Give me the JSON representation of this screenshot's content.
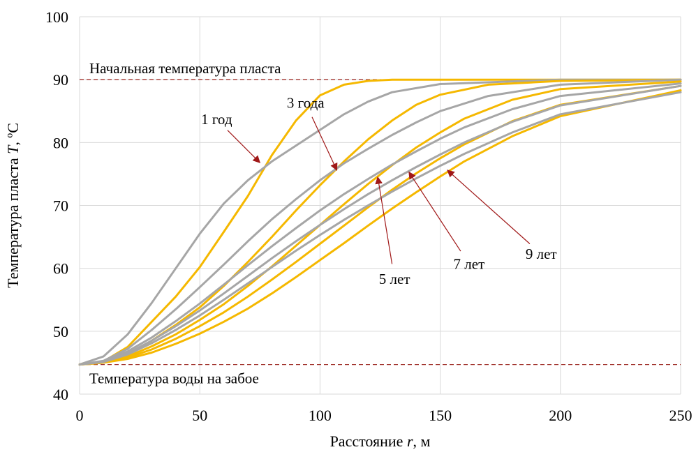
{
  "chart_data": {
    "type": "line",
    "title": "",
    "xlabel_prefix": "Расстояние ",
    "xlabel_var": "r",
    "xlabel_suffix": ", м",
    "ylabel_prefix": "Температура пласта ",
    "ylabel_var": "T",
    "ylabel_suffix": ", ºС",
    "xlim": [
      0,
      250
    ],
    "ylim": [
      40,
      100
    ],
    "x_ticks": [
      0,
      50,
      100,
      150,
      200,
      250
    ],
    "y_ticks": [
      40,
      50,
      60,
      70,
      80,
      90,
      100
    ],
    "x_tick_labels": [
      "0",
      "50",
      "100",
      "150",
      "200",
      "250"
    ],
    "y_tick_labels": [
      "40",
      "50",
      "60",
      "70",
      "80",
      "90",
      "100"
    ],
    "grid": true,
    "colors": {
      "gold": "#f5b800",
      "gray": "#a6a6a6",
      "reference": "#a0302a",
      "arrow": "#a01818"
    },
    "reference_lines": [
      {
        "y": 90,
        "label": "Начальная температура пласта"
      },
      {
        "y": 44.7,
        "label": "Температура воды на забое"
      }
    ],
    "series": [
      {
        "color": "gold",
        "x": [
          0,
          10,
          20,
          30,
          40,
          50,
          60,
          70,
          80,
          90,
          100,
          110,
          120,
          130,
          150,
          200,
          250
        ],
        "y": [
          44.7,
          45.2,
          47.5,
          51.5,
          55.5,
          60.2,
          65.8,
          71.5,
          78,
          83.5,
          87.5,
          89.2,
          89.8,
          90,
          90,
          90,
          90
        ]
      },
      {
        "color": "gray",
        "x": [
          0,
          10,
          20,
          30,
          40,
          50,
          60,
          70,
          80,
          90,
          100,
          110,
          120,
          130,
          150,
          200,
          250
        ],
        "y": [
          44.7,
          46,
          49.5,
          54.5,
          60,
          65.5,
          70.3,
          74,
          77,
          79.5,
          82,
          84.5,
          86.5,
          88,
          89.3,
          90,
          90
        ]
      },
      {
        "color": "gold",
        "x": [
          0,
          10,
          20,
          30,
          40,
          50,
          60,
          70,
          80,
          90,
          100,
          110,
          120,
          130,
          140,
          150,
          170,
          200,
          250
        ],
        "y": [
          44.7,
          45.1,
          46.3,
          48.5,
          51,
          53.8,
          57.2,
          61,
          65,
          69.2,
          73.2,
          77,
          80.5,
          83.5,
          86,
          87.6,
          89.2,
          89.8,
          90
        ]
      },
      {
        "color": "gray",
        "x": [
          0,
          10,
          20,
          30,
          40,
          50,
          60,
          70,
          80,
          90,
          100,
          110,
          120,
          130,
          140,
          150,
          170,
          200,
          250
        ],
        "y": [
          44.7,
          45.3,
          47.2,
          50.2,
          53.5,
          57,
          60.6,
          64.3,
          67.8,
          71,
          74,
          76.7,
          79,
          81.2,
          83.2,
          85,
          87.4,
          89.2,
          90
        ]
      },
      {
        "color": "gold",
        "x": [
          0,
          10,
          20,
          30,
          40,
          50,
          60,
          70,
          80,
          90,
          100,
          110,
          120,
          130,
          140,
          150,
          160,
          180,
          200,
          250
        ],
        "y": [
          44.7,
          45,
          46,
          47.6,
          49.5,
          51.8,
          54.3,
          57.2,
          60.3,
          63.6,
          66.9,
          70.2,
          73.4,
          76.4,
          79.2,
          81.6,
          83.8,
          86.8,
          88.5,
          89.7
        ]
      },
      {
        "color": "gray",
        "x": [
          0,
          10,
          20,
          30,
          40,
          50,
          60,
          70,
          80,
          90,
          100,
          110,
          120,
          130,
          140,
          150,
          160,
          180,
          200,
          250
        ],
        "y": [
          44.7,
          45.2,
          46.8,
          49,
          51.6,
          54.4,
          57.4,
          60.5,
          63.5,
          66.4,
          69.2,
          71.8,
          74.2,
          76.5,
          78.6,
          80.6,
          82.4,
          85.3,
          87.4,
          89.4
        ]
      },
      {
        "color": "gold",
        "x": [
          0,
          10,
          20,
          30,
          40,
          50,
          60,
          70,
          80,
          90,
          100,
          110,
          120,
          130,
          140,
          150,
          160,
          180,
          200,
          250
        ],
        "y": [
          44.7,
          45,
          45.8,
          47.1,
          48.8,
          50.8,
          53,
          55.5,
          58.2,
          61,
          63.9,
          66.8,
          69.7,
          72.5,
          75.1,
          77.5,
          79.7,
          83.4,
          86,
          89
        ]
      },
      {
        "color": "gray",
        "x": [
          0,
          10,
          20,
          30,
          40,
          50,
          60,
          70,
          80,
          90,
          100,
          110,
          120,
          130,
          140,
          150,
          160,
          180,
          200,
          250
        ],
        "y": [
          44.7,
          45.1,
          46.5,
          48.5,
          50.8,
          53.3,
          56,
          58.8,
          61.6,
          64.3,
          66.9,
          69.4,
          71.8,
          74,
          76.1,
          78.1,
          80,
          83.3,
          85.9,
          89
        ]
      },
      {
        "color": "gold",
        "x": [
          0,
          10,
          20,
          30,
          40,
          50,
          60,
          70,
          80,
          90,
          100,
          110,
          120,
          130,
          140,
          150,
          160,
          180,
          200,
          250
        ],
        "y": [
          44.7,
          45,
          45.6,
          46.6,
          48,
          49.6,
          51.5,
          53.6,
          56,
          58.6,
          61.3,
          64,
          66.8,
          69.5,
          72.1,
          74.6,
          77,
          81,
          84.2,
          88.3
        ]
      },
      {
        "color": "gray",
        "x": [
          0,
          10,
          20,
          30,
          40,
          50,
          60,
          70,
          80,
          90,
          100,
          110,
          120,
          130,
          140,
          150,
          160,
          180,
          200,
          250
        ],
        "y": [
          44.7,
          45.1,
          46.3,
          48.1,
          50.2,
          52.5,
          55,
          57.6,
          60.2,
          62.8,
          65.3,
          67.7,
          70,
          72.2,
          74.3,
          76.3,
          78.2,
          81.6,
          84.5,
          88
        ]
      }
    ],
    "annotations": [
      {
        "text": "1 год",
        "text_x": 57,
        "text_y": 82.9,
        "point_x": 75,
        "point_y": 76.8
      },
      {
        "text": "3 года",
        "text_x": 94,
        "text_y": 85.5,
        "point_x": 107,
        "point_y": 75.6
      },
      {
        "text": "5 лет",
        "text_x": 131,
        "text_y": 57.5,
        "point_x": 124,
        "point_y": 74.5
      },
      {
        "text": "7 лет",
        "text_x": 162,
        "text_y": 59.9,
        "point_x": 137,
        "point_y": 75.3
      },
      {
        "text": "9 лет",
        "text_x": 192,
        "text_y": 61.5,
        "point_x": 153,
        "point_y": 75.6
      }
    ]
  }
}
